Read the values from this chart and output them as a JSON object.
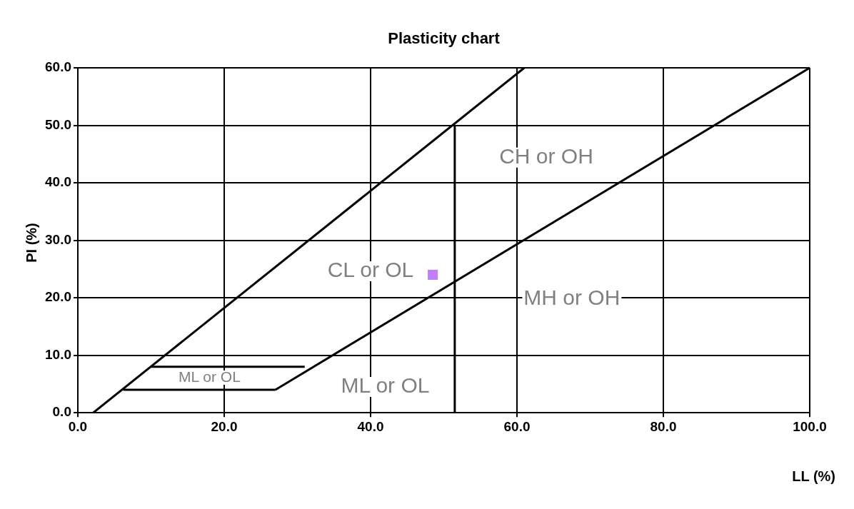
{
  "chart_data": {
    "type": "line",
    "title": "Plasticity chart",
    "xlabel": "LL (%)",
    "ylabel": "PI (%)",
    "xlim": [
      0,
      100
    ],
    "ylim": [
      0,
      60
    ],
    "xticks": [
      {
        "value": 0,
        "label": "0.0"
      },
      {
        "value": 20,
        "label": "20.0"
      },
      {
        "value": 40,
        "label": "40.0"
      },
      {
        "value": 60,
        "label": "60.0"
      },
      {
        "value": 80,
        "label": "80.0"
      },
      {
        "value": 100,
        "label": "100.0"
      }
    ],
    "yticks": [
      {
        "value": 0,
        "label": "0.0"
      },
      {
        "value": 10,
        "label": "10.0"
      },
      {
        "value": 20,
        "label": "20.0"
      },
      {
        "value": 30,
        "label": "30.0"
      },
      {
        "value": 40,
        "label": "40.0"
      },
      {
        "value": 50,
        "label": "50.0"
      },
      {
        "value": 60,
        "label": "60.0"
      }
    ],
    "grid": true,
    "legend": false,
    "marker": "none",
    "line_style": "solid",
    "series": [
      {
        "color": "#000000",
        "x": [
          2.1,
          61
        ],
        "values": [
          0,
          60
        ]
      },
      {
        "color": "#000000",
        "x": [
          27,
          100
        ],
        "values": [
          4,
          60
        ]
      },
      {
        "color": "#000000",
        "x": [
          6.2,
          27
        ],
        "values": [
          4,
          4
        ]
      },
      {
        "color": "#000000",
        "x": [
          10,
          31
        ],
        "values": [
          8,
          8
        ]
      },
      {
        "color": "#000000",
        "x": [
          51.5,
          51.5
        ],
        "values": [
          0,
          50
        ]
      },
      {
        "type": "scatter",
        "color": "#c080f8",
        "marker": "square",
        "x": [
          48.5
        ],
        "values": [
          24
        ]
      }
    ],
    "annotations": [
      "CH or OH",
      "CL or OL",
      "MH or OH",
      "ML or OL",
      "ML or OL"
    ]
  }
}
